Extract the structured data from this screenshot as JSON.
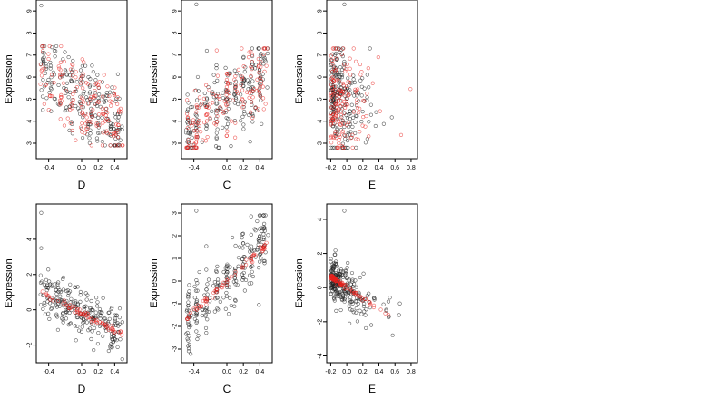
{
  "colors": {
    "point_black": "#222222",
    "point_red": "#e8211d",
    "axis": "#000000"
  },
  "chart_data": [
    {
      "type": "scatter",
      "xlabel": "D",
      "ylabel": "Expression",
      "xlim": [
        -0.55,
        0.55
      ],
      "ylim": [
        2.3,
        9.5
      ],
      "xticks": [
        -0.4,
        0.0,
        0.2,
        0.4
      ],
      "xtick_labels": [
        "-0.4",
        "0.0",
        "0.2",
        "0.4"
      ],
      "yticks": [
        3,
        4,
        5,
        6,
        7,
        8,
        9
      ],
      "ytick_labels": [
        "3",
        "4",
        "5",
        "6",
        "7",
        "8",
        "9"
      ],
      "gen": {
        "kind": "raw",
        "xmin": -0.5,
        "xmax": 0.5,
        "y0": 5.0,
        "slope": -2.6,
        "noise": 1.0,
        "ymin": 2.9,
        "ymax": 7.4,
        "n_black": 220,
        "n_red": 160,
        "cluster": 0.35,
        "seed": 11,
        "outliers": [
          [
            -0.49,
            9.25
          ]
        ]
      }
    },
    {
      "type": "scatter",
      "xlabel": "C",
      "ylabel": "Expression",
      "xlim": [
        -0.55,
        0.55
      ],
      "ylim": [
        2.3,
        9.5
      ],
      "xticks": [
        -0.4,
        0.0,
        0.2,
        0.4
      ],
      "xtick_labels": [
        "-0.4",
        "0.0",
        "0.2",
        "0.4"
      ],
      "yticks": [
        3,
        4,
        5,
        6,
        7,
        8,
        9
      ],
      "ytick_labels": [
        "3",
        "4",
        "5",
        "6",
        "7",
        "8",
        "9"
      ],
      "gen": {
        "kind": "raw",
        "xmin": -0.5,
        "xmax": 0.5,
        "y0": 4.8,
        "slope": 2.8,
        "noise": 1.0,
        "ymin": 2.8,
        "ymax": 7.3,
        "n_black": 220,
        "n_red": 160,
        "cluster": 0.6,
        "seed": 23,
        "outliers": [
          [
            -0.37,
            9.3
          ]
        ]
      }
    },
    {
      "type": "scatter",
      "xlabel": "E",
      "ylabel": "Expression",
      "xlim": [
        -0.25,
        0.88
      ],
      "ylim": [
        2.3,
        9.5
      ],
      "xticks": [
        -0.2,
        0.0,
        0.2,
        0.4,
        0.6,
        0.8
      ],
      "xtick_labels": [
        "-0.2",
        "0.0",
        "0.2",
        "0.4",
        "0.6",
        "0.8"
      ],
      "yticks": [
        3,
        4,
        5,
        6,
        7,
        8,
        9
      ],
      "ytick_labels": [
        "3",
        "4",
        "5",
        "6",
        "7",
        "8",
        "9"
      ],
      "gen": {
        "kind": "raw_e",
        "xmin": -0.2,
        "xmax": 0.85,
        "y0": 4.8,
        "slope": -0.9,
        "noise": 1.2,
        "ymin": 2.8,
        "ymax": 7.3,
        "n_black": 220,
        "n_red": 160,
        "cluster": 0.0,
        "seed": 37,
        "outliers": [
          [
            -0.03,
            9.3
          ]
        ]
      }
    },
    {
      "type": "scatter",
      "xlabel": "D",
      "ylabel": "Expression",
      "xlim": [
        -0.55,
        0.55
      ],
      "ylim": [
        -3.0,
        6.0
      ],
      "xticks": [
        -0.4,
        0.0,
        0.2,
        0.4
      ],
      "xtick_labels": [
        "-0.4",
        "0.0",
        "0.2",
        "0.4"
      ],
      "yticks": [
        -2,
        0,
        2,
        4
      ],
      "ytick_labels": [
        "-2",
        "0",
        "2",
        "4"
      ],
      "gen": {
        "kind": "resid",
        "xmin": -0.5,
        "xmax": 0.5,
        "y0": -0.2,
        "slope": -2.4,
        "noise": 0.7,
        "ymin": -2.8,
        "ymax": 3.8,
        "n_black": 240,
        "n_red": 70,
        "cluster": 0.0,
        "seed": 51,
        "outliers": [
          [
            -0.49,
            5.5
          ],
          [
            -0.49,
            3.5
          ]
        ]
      }
    },
    {
      "type": "scatter",
      "xlabel": "C",
      "ylabel": "Expression",
      "xlim": [
        -0.55,
        0.55
      ],
      "ylim": [
        -3.6,
        3.4
      ],
      "xticks": [
        -0.4,
        0.0,
        0.2,
        0.4
      ],
      "xtick_labels": [
        "-0.4",
        "0.0",
        "0.2",
        "0.4"
      ],
      "yticks": [
        -3,
        -2,
        -1,
        0,
        1,
        2,
        3
      ],
      "ytick_labels": [
        "-3",
        "-2",
        "-1",
        "0",
        "1",
        "2",
        "3"
      ],
      "gen": {
        "kind": "resid",
        "xmin": -0.5,
        "xmax": 0.5,
        "y0": 0.0,
        "slope": 3.4,
        "noise": 0.7,
        "ymin": -3.3,
        "ymax": 2.9,
        "n_black": 240,
        "n_red": 70,
        "cluster": 0.6,
        "seed": 67,
        "outliers": [
          [
            -0.37,
            3.1
          ]
        ]
      }
    },
    {
      "type": "scatter",
      "xlabel": "E",
      "ylabel": "Expression",
      "xlim": [
        -0.25,
        0.88
      ],
      "ylim": [
        -4.4,
        4.9
      ],
      "xticks": [
        -0.2,
        0.0,
        0.2,
        0.4,
        0.6,
        0.8
      ],
      "xtick_labels": [
        "-0.2",
        "0.0",
        "0.2",
        "0.4",
        "0.6",
        "0.8"
      ],
      "yticks": [
        -4,
        -2,
        0,
        2,
        4
      ],
      "ytick_labels": [
        "-4",
        "-2",
        "0",
        "2",
        "4"
      ],
      "gen": {
        "kind": "resid_e",
        "xmin": -0.2,
        "xmax": 0.82,
        "y0": 0.0,
        "slope": -3.2,
        "noise": 0.6,
        "ymin": -4.0,
        "ymax": 2.6,
        "n_black": 250,
        "n_red": 90,
        "cluster": 0.0,
        "seed": 83,
        "outliers": [
          [
            -0.03,
            4.5
          ]
        ]
      }
    }
  ]
}
